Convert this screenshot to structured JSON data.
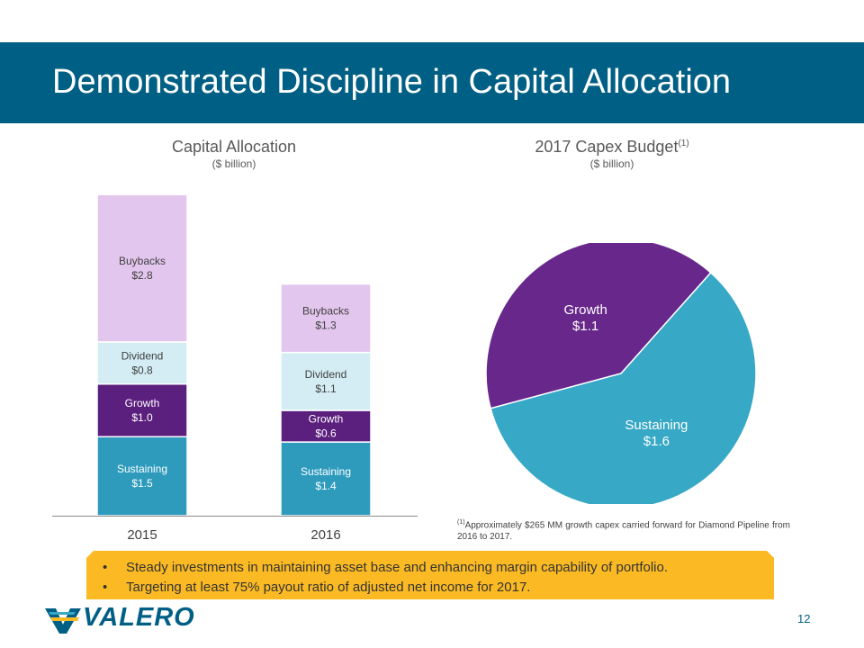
{
  "title": "Demonstrated Discipline in Capital Allocation",
  "left_chart": {
    "title": "Capital Allocation",
    "subtitle": "($ billion)"
  },
  "right_chart": {
    "title": "2017 Capex Budget",
    "title_sup": "(1)",
    "subtitle": "($ billion)"
  },
  "chart_data": [
    {
      "type": "bar",
      "stacked": true,
      "title": "Capital Allocation",
      "subtitle": "($ billion)",
      "categories": [
        "2015",
        "2016"
      ],
      "series": [
        {
          "name": "Sustaining",
          "values": [
            1.5,
            1.4
          ],
          "labels": [
            "Sustaining\n$1.5",
            "Sustaining\n$1.4"
          ],
          "color": "#2e9bbd",
          "text_color": "#ffffff"
        },
        {
          "name": "Growth",
          "values": [
            1.0,
            0.6
          ],
          "labels": [
            "Growth\n$1.0",
            "Growth\n$0.6"
          ],
          "color": "#5b1f7e",
          "text_color": "#ffffff"
        },
        {
          "name": "Dividend",
          "values": [
            0.8,
            1.1
          ],
          "labels": [
            "Dividend\n$0.8",
            "Dividend\n$1.1"
          ],
          "color": "#d4edf5",
          "text_color": "#404040"
        },
        {
          "name": "Buybacks",
          "values": [
            2.8,
            1.3
          ],
          "labels": [
            "Buybacks\n$2.8",
            "Buybacks\n$1.3"
          ],
          "color": "#e3c6ee",
          "text_color": "#404040"
        }
      ]
    },
    {
      "type": "pie",
      "title": "2017 Capex Budget",
      "subtitle": "($ billion)",
      "slices": [
        {
          "name": "Growth",
          "value": 1.1,
          "label_name": "Growth",
          "label_value": "$1.1",
          "color": "#68278b"
        },
        {
          "name": "Sustaining",
          "value": 1.6,
          "label_name": "Sustaining",
          "label_value": "$1.6",
          "color": "#37a8c6"
        }
      ]
    }
  ],
  "footnote": {
    "marker": "(1)",
    "text": "Approximately $265 MM growth capex carried forward for Diamond Pipeline from 2016 to 2017."
  },
  "bullets": [
    "Steady investments in maintaining asset base and enhancing margin capability of portfolio.",
    "Targeting at least 75% payout ratio of adjusted net income for 2017."
  ],
  "logo": {
    "text": "VALERO"
  },
  "page_number": "12",
  "colors": {
    "title_bar": "#005f84",
    "accent_yellow": "#fbba23",
    "brand_blue": "#005f84"
  }
}
